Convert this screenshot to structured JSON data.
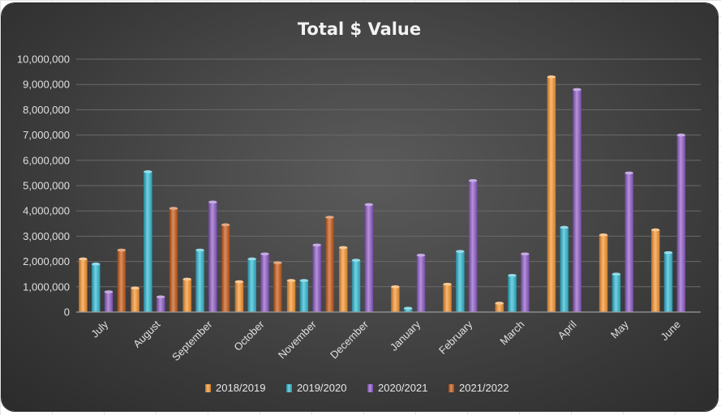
{
  "chart_data": {
    "type": "bar",
    "title": "Total $ Value",
    "xlabel": "",
    "ylabel": "",
    "ylim": [
      0,
      10000000
    ],
    "yticks": [
      "0",
      "1,000,000",
      "2,000,000",
      "3,000,000",
      "4,000,000",
      "5,000,000",
      "6,000,000",
      "7,000,000",
      "8,000,000",
      "9,000,000",
      "10,000,000"
    ],
    "ytick_values": [
      0,
      1000000,
      2000000,
      3000000,
      4000000,
      5000000,
      6000000,
      7000000,
      8000000,
      9000000,
      10000000
    ],
    "grid": true,
    "legend_position": "bottom",
    "categories": [
      "July",
      "August",
      "September",
      "October",
      "November",
      "December",
      "January",
      "February",
      "March",
      "April",
      "May",
      "June"
    ],
    "series": [
      {
        "name": "2018/2019",
        "color": "#f5922b",
        "values": [
          2100000,
          950000,
          1300000,
          1200000,
          1250000,
          2550000,
          1000000,
          1100000,
          350000,
          9300000,
          3050000,
          3250000
        ]
      },
      {
        "name": "2019/2020",
        "color": "#2ab7d1",
        "values": [
          1900000,
          5550000,
          2450000,
          2100000,
          1250000,
          2050000,
          150000,
          2400000,
          1450000,
          3350000,
          1500000,
          2350000
        ]
      },
      {
        "name": "2020/2021",
        "color": "#8c58c6",
        "values": [
          800000,
          600000,
          4350000,
          2300000,
          2650000,
          4250000,
          2250000,
          5200000,
          2300000,
          8800000,
          5500000,
          7000000
        ]
      },
      {
        "name": "2021/2022",
        "color": "#c4530e",
        "values": [
          2450000,
          4100000,
          3450000,
          1950000,
          3750000,
          null,
          null,
          null,
          null,
          null,
          null,
          null
        ]
      }
    ]
  }
}
